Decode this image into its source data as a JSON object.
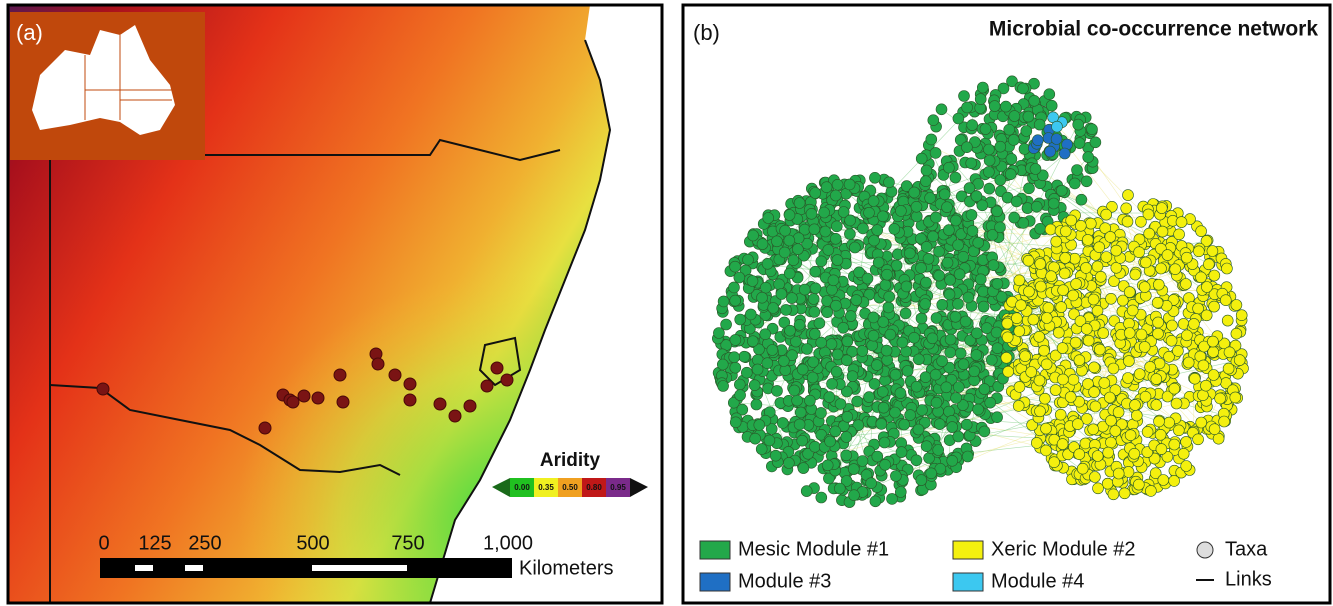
{
  "panel_a": {
    "label": "(a)",
    "colorbar": {
      "title": "Aridity",
      "labels": [
        "0.00",
        "0.35",
        "0.50",
        "0.80",
        "0.95"
      ]
    },
    "scalebar": {
      "labels": [
        "0",
        "125",
        "250",
        "500",
        "750",
        "1,000"
      ],
      "unit": "Kilometers"
    }
  },
  "panel_b": {
    "label": "(b)",
    "title": "Microbial co-occurrence network",
    "legend": [
      {
        "label": "Mesic Module #1",
        "color": "#22a84a"
      },
      {
        "label": "Xeric Module #2",
        "color": "#f4f00e"
      },
      {
        "label": "Module #3",
        "color": "#1f6fc4"
      },
      {
        "label": "Module #4",
        "color": "#3cc8f0"
      }
    ],
    "key": [
      {
        "label": "Taxa"
      },
      {
        "label": "Links"
      }
    ]
  }
}
